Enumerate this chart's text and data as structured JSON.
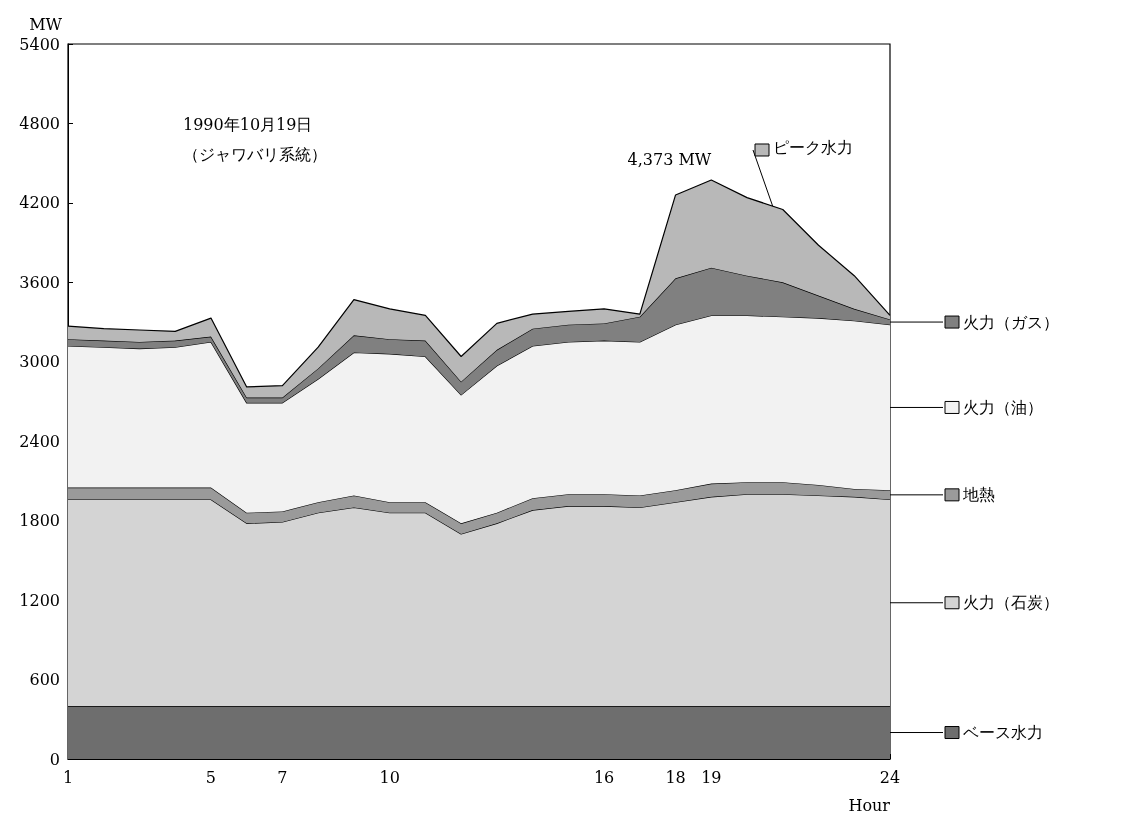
{
  "chart_data": {
    "type": "area",
    "stacked": true,
    "ylabel": "MW",
    "xlabel": "Hour",
    "legend": "right",
    "annotations": [
      "1990年10月19日",
      "（ジャワバリ系統）",
      {
        "text": "4,373 MW",
        "x": 19,
        "y": 4373
      }
    ],
    "x": [
      1,
      2,
      3,
      4,
      5,
      6,
      7,
      8,
      9,
      10,
      11,
      12,
      13,
      14,
      15,
      16,
      17,
      18,
      19,
      20,
      21,
      22,
      23,
      24
    ],
    "xlim": [
      1,
      24
    ],
    "xticks": [
      1,
      5,
      7,
      10,
      16,
      18,
      19,
      24
    ],
    "ylim": [
      0,
      5400
    ],
    "yticks": [
      0,
      600,
      1200,
      1800,
      2400,
      3000,
      3600,
      4200,
      4800,
      5400
    ],
    "series": [
      {
        "name": "ベース水力",
        "color": "#6e6e6e",
        "values": [
          400,
          400,
          400,
          400,
          400,
          400,
          400,
          400,
          400,
          400,
          400,
          400,
          400,
          400,
          400,
          400,
          400,
          400,
          400,
          400,
          400,
          400,
          400,
          400
        ]
      },
      {
        "name": "火力（石炭）",
        "color": "#d4d4d4",
        "values": [
          1560,
          1560,
          1560,
          1560,
          1560,
          1380,
          1390,
          1460,
          1500,
          1460,
          1460,
          1300,
          1380,
          1480,
          1510,
          1510,
          1500,
          1540,
          1580,
          1600,
          1600,
          1590,
          1580,
          1560
        ]
      },
      {
        "name": "地熱",
        "color": "#9a9a9a",
        "values": [
          90,
          90,
          90,
          90,
          90,
          80,
          80,
          80,
          90,
          80,
          80,
          80,
          80,
          90,
          90,
          90,
          90,
          90,
          100,
          90,
          90,
          80,
          60,
          70
        ]
      },
      {
        "name": "火力（油）",
        "color": "#f2f2f2",
        "values": [
          1070,
          1060,
          1050,
          1060,
          1100,
          830,
          820,
          930,
          1080,
          1120,
          1100,
          970,
          1110,
          1150,
          1150,
          1160,
          1160,
          1250,
          1270,
          1260,
          1250,
          1260,
          1270,
          1250
        ]
      },
      {
        "name": "火力（ガス）",
        "color": "#808080",
        "values": [
          50,
          50,
          50,
          50,
          40,
          40,
          40,
          80,
          130,
          110,
          120,
          100,
          120,
          130,
          130,
          130,
          190,
          350,
          360,
          300,
          260,
          170,
          90,
          40
        ]
      },
      {
        "name": "ピーク水力",
        "color": "#b8b8b8",
        "values": [
          100,
          90,
          90,
          70,
          140,
          80,
          90,
          160,
          270,
          230,
          190,
          190,
          200,
          110,
          100,
          110,
          20,
          630,
          663,
          590,
          550,
          380,
          250,
          30
        ]
      }
    ]
  }
}
